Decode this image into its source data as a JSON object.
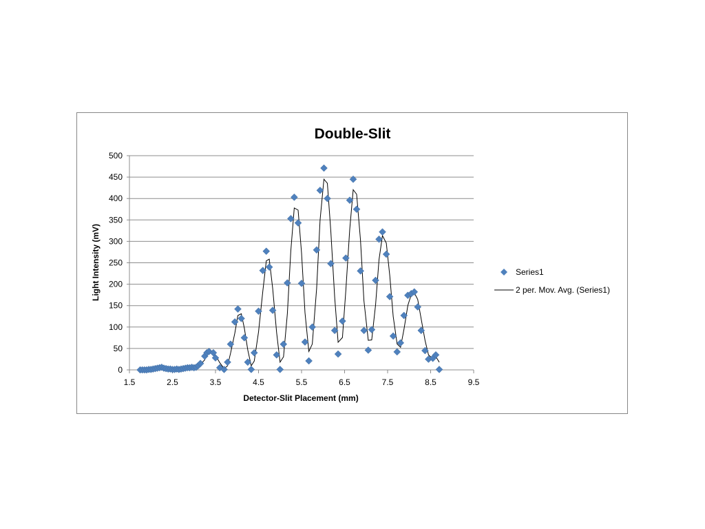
{
  "chart_data": {
    "type": "scatter",
    "title": "Double-Slit",
    "xlabel": "Detector-Slit Placement (mm)",
    "ylabel": "Light Intensity (mV)",
    "xlim": [
      1.5,
      9.5
    ],
    "ylim": [
      0,
      500
    ],
    "x_ticks": [
      "1.5",
      "2.5",
      "3.5",
      "4.5",
      "5.5",
      "6.5",
      "7.5",
      "8.5",
      "9.5"
    ],
    "y_ticks": [
      "0",
      "50",
      "100",
      "150",
      "200",
      "250",
      "300",
      "350",
      "400",
      "450",
      "500"
    ],
    "grid": "horizontal",
    "legend_position": "right",
    "series": [
      {
        "name": "Series1",
        "marker": "diamond",
        "color": "#4f81bd",
        "points": [
          [
            1.75,
            0
          ],
          [
            1.8,
            0
          ],
          [
            1.85,
            0
          ],
          [
            1.9,
            0
          ],
          [
            1.95,
            1
          ],
          [
            2.0,
            1
          ],
          [
            2.05,
            2
          ],
          [
            2.1,
            3
          ],
          [
            2.15,
            4
          ],
          [
            2.2,
            5
          ],
          [
            2.25,
            6
          ],
          [
            2.3,
            4
          ],
          [
            2.35,
            3
          ],
          [
            2.4,
            2
          ],
          [
            2.45,
            2
          ],
          [
            2.5,
            1
          ],
          [
            2.55,
            1
          ],
          [
            2.6,
            2
          ],
          [
            2.65,
            1
          ],
          [
            2.7,
            2
          ],
          [
            2.75,
            3
          ],
          [
            2.8,
            4
          ],
          [
            2.85,
            5
          ],
          [
            2.9,
            5
          ],
          [
            2.95,
            6
          ],
          [
            3.0,
            5
          ],
          [
            3.05,
            6
          ],
          [
            3.1,
            10
          ],
          [
            3.15,
            15
          ],
          [
            3.25,
            32
          ],
          [
            3.3,
            40
          ],
          [
            3.35,
            43
          ],
          [
            3.45,
            40
          ],
          [
            3.5,
            28
          ],
          [
            3.6,
            5
          ],
          [
            3.7,
            1
          ],
          [
            3.78,
            18
          ],
          [
            3.85,
            60
          ],
          [
            3.95,
            112
          ],
          [
            4.02,
            142
          ],
          [
            4.1,
            120
          ],
          [
            4.17,
            75
          ],
          [
            4.25,
            18
          ],
          [
            4.33,
            1
          ],
          [
            4.4,
            40
          ],
          [
            4.5,
            137
          ],
          [
            4.6,
            232
          ],
          [
            4.68,
            277
          ],
          [
            4.75,
            240
          ],
          [
            4.83,
            139
          ],
          [
            4.92,
            35
          ],
          [
            5.0,
            1
          ],
          [
            5.08,
            60
          ],
          [
            5.17,
            203
          ],
          [
            5.25,
            353
          ],
          [
            5.33,
            403
          ],
          [
            5.42,
            343
          ],
          [
            5.5,
            202
          ],
          [
            5.58,
            65
          ],
          [
            5.67,
            21
          ],
          [
            5.75,
            100
          ],
          [
            5.85,
            280
          ],
          [
            5.93,
            419
          ],
          [
            6.02,
            471
          ],
          [
            6.1,
            400
          ],
          [
            6.18,
            248
          ],
          [
            6.27,
            92
          ],
          [
            6.35,
            37
          ],
          [
            6.45,
            114
          ],
          [
            6.53,
            261
          ],
          [
            6.62,
            396
          ],
          [
            6.7,
            445
          ],
          [
            6.78,
            375
          ],
          [
            6.87,
            231
          ],
          [
            6.95,
            92
          ],
          [
            7.05,
            46
          ],
          [
            7.13,
            94
          ],
          [
            7.22,
            209
          ],
          [
            7.3,
            305
          ],
          [
            7.38,
            322
          ],
          [
            7.47,
            270
          ],
          [
            7.55,
            171
          ],
          [
            7.63,
            79
          ],
          [
            7.72,
            42
          ],
          [
            7.8,
            63
          ],
          [
            7.88,
            127
          ],
          [
            7.97,
            174
          ],
          [
            8.05,
            178
          ],
          [
            8.12,
            182
          ],
          [
            8.2,
            147
          ],
          [
            8.28,
            92
          ],
          [
            8.37,
            45
          ],
          [
            8.45,
            25
          ],
          [
            8.55,
            27
          ],
          [
            8.62,
            35
          ],
          [
            8.7,
            1
          ]
        ]
      },
      {
        "name": "2 per. Mov. Avg. (Series1)",
        "type": "line",
        "color": "#000000"
      }
    ]
  }
}
